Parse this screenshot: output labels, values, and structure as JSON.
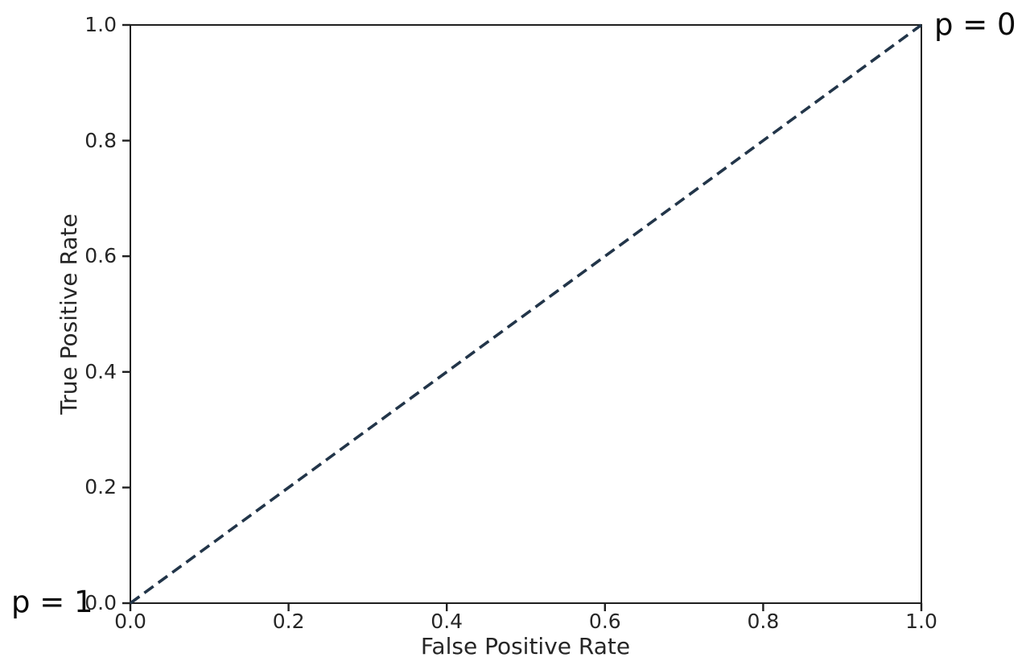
{
  "chart_data": {
    "type": "line",
    "title": "",
    "xlabel": "False Positive Rate",
    "ylabel": "True Positive Rate",
    "xlim": [
      0.0,
      1.0
    ],
    "ylim": [
      0.0,
      1.0
    ],
    "xticks": [
      0.0,
      0.2,
      0.4,
      0.6,
      0.8,
      1.0
    ],
    "yticks": [
      0.0,
      0.2,
      0.4,
      0.6,
      0.8,
      1.0
    ],
    "xtick_labels": [
      "0.0",
      "0.2",
      "0.4",
      "0.6",
      "0.8",
      "1.0"
    ],
    "ytick_labels": [
      "0.0",
      "0.2",
      "0.4",
      "0.6",
      "0.8",
      "1.0"
    ],
    "grid": false,
    "legend": "none",
    "series": [
      {
        "name": "roc-diagonal",
        "style": "dashed",
        "color": "#223549",
        "x": [
          0.0,
          1.0
        ],
        "y": [
          0.0,
          1.0
        ]
      }
    ],
    "annotations": [
      {
        "text": "p = 1",
        "anchor_x": 0.0,
        "anchor_y": 0.0,
        "placement": "outside-bottom-left"
      },
      {
        "text": "p = 0",
        "anchor_x": 1.0,
        "anchor_y": 1.0,
        "placement": "outside-top-right"
      }
    ]
  },
  "colors": {
    "axis": "#1f1f1f",
    "tick_text": "#262626",
    "annotation_text": "#0a0a0a",
    "line": "#223549",
    "background": "#ffffff"
  }
}
